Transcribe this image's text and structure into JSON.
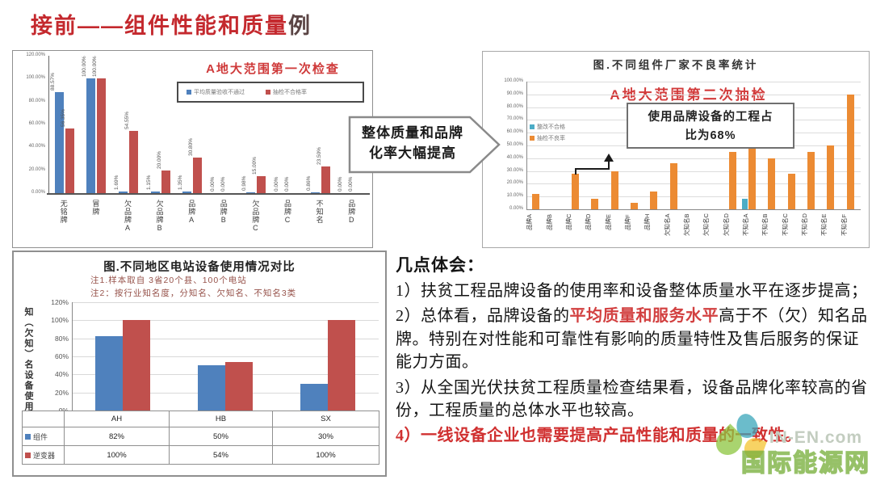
{
  "page": {
    "title_main": "接前——组件性能和质量",
    "title_suffix": "例",
    "accent_red": "#c4292e"
  },
  "arrow_callout": {
    "line1": "整体质量和品牌",
    "line2": "化率大幅提高"
  },
  "commentary": {
    "heading": "几点体会：",
    "item1": "1）扶贫工程品牌设备的使用率和设备整体质量水平在逐步提高；",
    "item2_pre": "2）总体看，品牌设备的",
    "item2_highlight": "平均质量和服务水平",
    "item2_post": "高于不（欠）知名品牌。特别在对性能和可靠性有影响的质量特性及售后服务的保证能力方面。",
    "item3": "3）从全国光伏扶贫工程质量检查结果看，设备品牌化率较高的省份，工程质量的总体水平也较高。",
    "item4": "4）一线设备企业也需要提高产品性能和质量的一致性。"
  },
  "watermark": {
    "site": "IN-EN.com",
    "name": "国际能源网"
  },
  "chart_data": [
    {
      "id": "first_inspection",
      "type": "bar",
      "title": "A地大范围第一次检查",
      "categories": [
        "无铭牌",
        "冒牌",
        "欠品牌A",
        "欠品牌B",
        "品牌A",
        "品牌B",
        "欠品牌C",
        "品牌C",
        "不知名",
        "品牌D"
      ],
      "series": [
        {
          "name": "平均质量验收不通过",
          "color": "#4f81bd",
          "values": [
            88.57,
            100,
            1.69,
            1.15,
            1.35,
            0,
            0.98,
            0,
            0.86,
            0
          ],
          "labels": [
            "88.57%",
            "100.00%",
            "1.69%",
            "1.15%",
            "1.35%",
            "0.00%",
            "0.98%",
            "0.00%",
            "0.86%",
            "0.00%"
          ]
        },
        {
          "name": "抽检不合格率",
          "color": "#c0504d",
          "values": [
            56.35,
            100,
            54.55,
            20,
            30.8,
            0,
            15,
            0,
            23.5,
            0
          ],
          "labels": [
            "56.35%",
            "100.00%",
            "54.55%",
            "20.00%",
            "30.80%",
            "0.00%",
            "15.00%",
            "0.00%",
            "23.50%",
            "0.00%"
          ]
        }
      ],
      "ylim": [
        0,
        120
      ],
      "yticks": [
        "0.00%",
        "20.00%",
        "40.00%",
        "60.00%",
        "80.00%",
        "100.00%",
        "120.00%"
      ],
      "grid": false,
      "legend_position": "top-right-box"
    },
    {
      "id": "second_sampling",
      "type": "bar",
      "title": "图.不同组件厂家不良率统计",
      "subtitle": "A地大范围第二次抽检",
      "callout_line1": "使用品牌设备的工程占",
      "callout_line2": "比为68%",
      "categories": [
        "品牌A",
        "品牌B",
        "品牌C",
        "品牌D",
        "品牌E",
        "品牌F",
        "品牌H",
        "欠知名A",
        "欠知名B",
        "欠知名C",
        "欠知名D",
        "不知名A",
        "不知名B",
        "不知名C",
        "不知名D",
        "不知名E",
        "不知名F"
      ],
      "series": [
        {
          "name": "整改不合格",
          "color": "#4bacc6",
          "values": [
            0,
            0,
            0,
            0,
            0,
            0,
            0,
            0,
            0,
            0,
            0,
            8,
            0,
            0,
            0,
            0,
            0
          ]
        },
        {
          "name": "抽检不良率",
          "color": "#ec8b33",
          "values": [
            12,
            0,
            28,
            8,
            30,
            5,
            14,
            36,
            0,
            0,
            45,
            55,
            40,
            28,
            45,
            50,
            90
          ]
        }
      ],
      "ylim": [
        0,
        100
      ],
      "yticks": [
        "0.00%",
        "10.00%",
        "20.00%",
        "30.00%",
        "40.00%",
        "50.00%",
        "60.00%",
        "70.00%",
        "80.00%",
        "90.00%",
        "100.00%"
      ],
      "grid": true,
      "legend_position": "inside-left"
    },
    {
      "id": "region_comparison",
      "type": "bar",
      "title": "图.不同地区电站设备使用情况对比",
      "note1": "注1.样本取自 3省20个县、100个电站",
      "note2": "注2：按行业知名度，分知名、欠知名、不知名3类",
      "ylabel": "知（欠知）名设备使用率",
      "categories": [
        "AH",
        "HB",
        "SX"
      ],
      "series": [
        {
          "name": "组件",
          "color": "#4f81bd",
          "values": [
            82,
            50,
            30
          ],
          "labels": [
            "82%",
            "50%",
            "30%"
          ]
        },
        {
          "name": "逆变器",
          "color": "#c0504d",
          "values": [
            100,
            54,
            100
          ],
          "labels": [
            "100%",
            "54%",
            "100%"
          ]
        }
      ],
      "ylim": [
        0,
        120
      ],
      "yticks": [
        "0%",
        "20%",
        "40%",
        "60%",
        "80%",
        "100%",
        "120%"
      ],
      "grid": true,
      "table": true
    }
  ]
}
